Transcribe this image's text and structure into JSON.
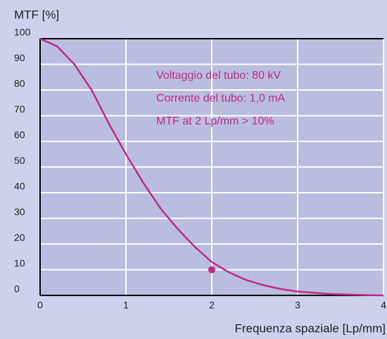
{
  "chart_data": {
    "type": "line",
    "y_axis_label": "MTF [%]",
    "x_axis_label": "Frequenza spaziale [Lp/mm]",
    "x": [
      0,
      0.2,
      0.4,
      0.6,
      0.8,
      1.0,
      1.2,
      1.4,
      1.6,
      1.8,
      2.0,
      2.2,
      2.4,
      2.6,
      2.8,
      3.0,
      3.2,
      3.4,
      3.6,
      3.8,
      4.0
    ],
    "values": [
      100,
      97,
      90,
      80,
      67,
      55,
      44,
      34,
      26,
      19,
      13,
      9,
      6,
      4,
      2.5,
      1.5,
      1,
      0.5,
      0.3,
      0.1,
      0
    ],
    "color": "#c0288a",
    "points": [
      {
        "x": 2,
        "y": 10
      }
    ],
    "annotations": [
      "Voltaggio del tubo: 80 kV",
      "Corrente del tubo: 1,0 mA",
      "MTF at 2 Lp/mm > 10%"
    ],
    "xlim": [
      0,
      4
    ],
    "xticks": [
      0,
      1,
      2,
      3,
      4
    ],
    "ylim": [
      0,
      100
    ],
    "yticks": [
      0,
      10,
      20,
      30,
      40,
      50,
      60,
      70,
      80,
      90,
      100
    ],
    "grid": true
  }
}
